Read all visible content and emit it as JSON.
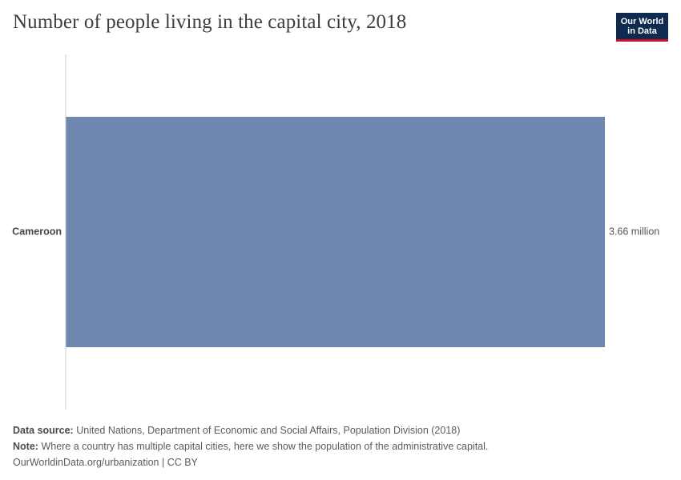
{
  "title": "Number of people living in the capital city, 2018",
  "logo": {
    "line1": "Our World",
    "line2": "in Data"
  },
  "colors": {
    "bar": "#6f88b1",
    "axis": "#cccccc",
    "logo_bg": "#0e2a4f",
    "logo_accent": "#c8102e"
  },
  "chart_data": {
    "type": "bar",
    "orientation": "horizontal",
    "categories": [
      "Cameroon"
    ],
    "values": [
      3660000
    ],
    "value_labels": [
      "3.66 million"
    ],
    "xlim": [
      0,
      3660000
    ],
    "grid": false
  },
  "footer": {
    "source_label": "Data source:",
    "source_text": "United Nations, Department of Economic and Social Affairs, Population Division (2018)",
    "note_label": "Note:",
    "note_text": "Where a country has multiple capital cities, here we show the population of the administrative capital.",
    "credit": "OurWorldinData.org/urbanization | CC BY"
  }
}
